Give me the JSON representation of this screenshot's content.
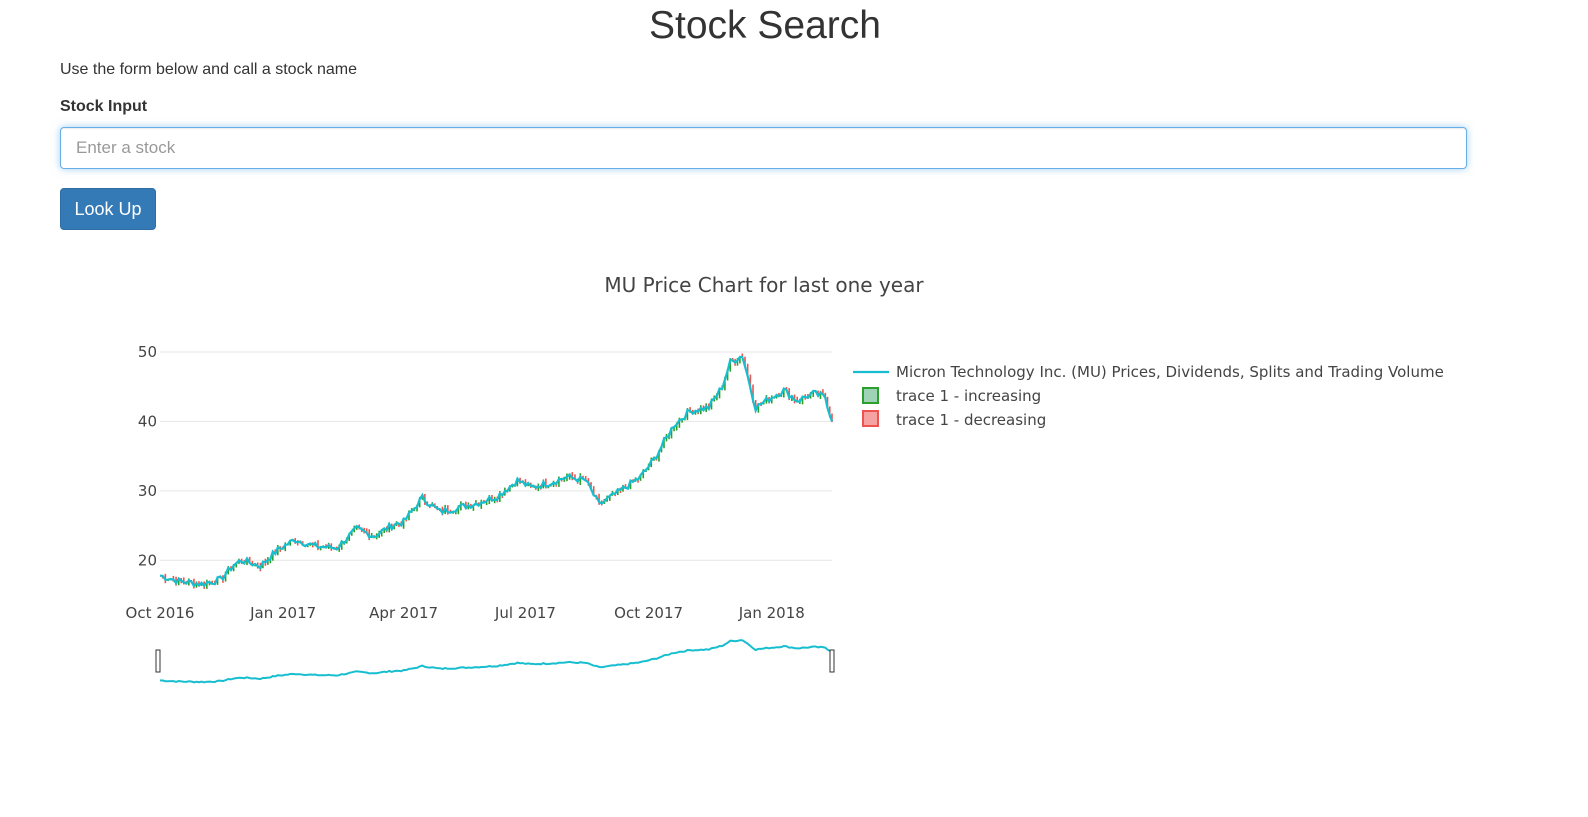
{
  "page": {
    "title": "Stock Search",
    "intro": "Use the form below and call a stock name",
    "form_label": "Stock Input",
    "input_placeholder": "Enter a stock",
    "input_value": "",
    "button_label": "Look Up"
  },
  "chart_data": {
    "type": "line",
    "title": "MU Price Chart for last one year",
    "xlabel": "",
    "ylabel": "",
    "x_ticks": [
      "Oct 2016",
      "Jan 2017",
      "Apr 2017",
      "Jul 2017",
      "Oct 2017",
      "Jan 2018"
    ],
    "y_ticks": [
      20,
      30,
      40,
      50
    ],
    "ylim": [
      15,
      51
    ],
    "xlim": [
      "2016-10-01",
      "2018-02-15"
    ],
    "grid": "horizontal",
    "legend_position": "right",
    "range_slider": true,
    "colors": {
      "line": "#17becf",
      "increasing": "#2ca02c",
      "decreasing": "#ef5350",
      "increasing_fill": "#9fd3b8",
      "decreasing_fill": "#f7a2a2"
    },
    "series": [
      {
        "name": "Micron Technology Inc. (MU) Prices, Dividends, Splits and Trading Volume",
        "x": [
          "2016-10-01",
          "2016-10-15",
          "2016-11-01",
          "2016-11-15",
          "2016-11-25",
          "2016-12-01",
          "2016-12-15",
          "2016-12-28",
          "2017-01-10",
          "2017-01-25",
          "2017-02-10",
          "2017-02-25",
          "2017-03-10",
          "2017-03-25",
          "2017-04-01",
          "2017-04-15",
          "2017-04-28",
          "2017-05-10",
          "2017-05-25",
          "2017-06-10",
          "2017-06-25",
          "2017-07-05",
          "2017-07-20",
          "2017-08-01",
          "2017-08-15",
          "2017-08-25",
          "2017-09-10",
          "2017-09-25",
          "2017-10-05",
          "2017-10-20",
          "2017-11-01",
          "2017-11-15",
          "2017-11-25",
          "2017-12-01",
          "2017-12-10",
          "2017-12-20",
          "2018-01-01",
          "2018-01-10",
          "2018-01-20",
          "2018-02-01",
          "2018-02-10",
          "2018-02-15"
        ],
        "values": [
          17.8,
          17.0,
          16.6,
          17.2,
          19.3,
          20.0,
          19.2,
          21.5,
          23.0,
          22.0,
          21.8,
          24.5,
          23.5,
          25.2,
          25.5,
          29.0,
          27.0,
          27.5,
          28.2,
          29.2,
          31.5,
          30.5,
          31.2,
          32.0,
          31.5,
          28.0,
          30.0,
          32.0,
          34.5,
          39.5,
          41.5,
          42.0,
          45.0,
          48.5,
          49.5,
          42.0,
          43.5,
          44.5,
          43.0,
          44.0,
          43.5,
          40.0
        ]
      }
    ],
    "legend": [
      "Micron Technology Inc. (MU) Prices, Dividends, Splits and Trading Volume",
      "trace 1 - increasing",
      "trace 1 - decreasing"
    ]
  }
}
